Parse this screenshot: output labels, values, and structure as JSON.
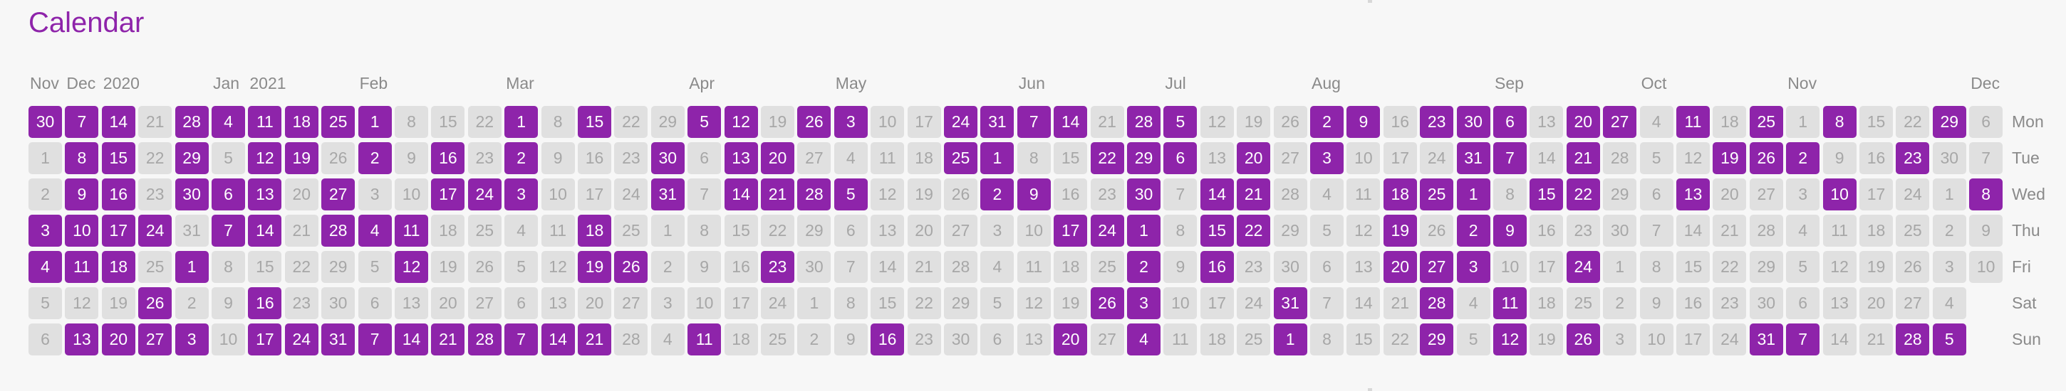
{
  "title": "Calendar",
  "colors": {
    "accent": "#8e24aa",
    "inactive_bg": "#e0e0e0",
    "inactive_text": "#a7a7a7",
    "label": "#8a8a8a"
  },
  "month_labels": [
    {
      "label": "Nov",
      "week": 0
    },
    {
      "label": "Dec",
      "week": 1
    },
    {
      "label": "2020",
      "week": 2
    },
    {
      "label": "Jan",
      "week": 5
    },
    {
      "label": "2021",
      "week": 6
    },
    {
      "label": "Feb",
      "week": 9
    },
    {
      "label": "Mar",
      "week": 13
    },
    {
      "label": "Apr",
      "week": 18
    },
    {
      "label": "May",
      "week": 22
    },
    {
      "label": "Jun",
      "week": 27
    },
    {
      "label": "Jul",
      "week": 31
    },
    {
      "label": "Aug",
      "week": 35
    },
    {
      "label": "Sep",
      "week": 40
    },
    {
      "label": "Oct",
      "week": 44
    },
    {
      "label": "Nov",
      "week": 48
    },
    {
      "label": "Dec",
      "week": 53
    }
  ],
  "weekdays": [
    "Mon",
    "Tue",
    "Wed",
    "Thu",
    "Fri",
    "Sat",
    "Sun"
  ],
  "weeks": [
    {
      "days": [
        30,
        1,
        2,
        3,
        4,
        5,
        6
      ],
      "active": [
        1,
        0,
        0,
        1,
        1,
        0,
        0
      ]
    },
    {
      "days": [
        7,
        8,
        9,
        10,
        11,
        12,
        13
      ],
      "active": [
        1,
        1,
        1,
        1,
        1,
        0,
        1
      ]
    },
    {
      "days": [
        14,
        15,
        16,
        17,
        18,
        19,
        20
      ],
      "active": [
        1,
        1,
        1,
        1,
        1,
        0,
        1
      ]
    },
    {
      "days": [
        21,
        22,
        23,
        24,
        25,
        26,
        27
      ],
      "active": [
        0,
        0,
        0,
        1,
        0,
        1,
        1
      ]
    },
    {
      "days": [
        28,
        29,
        30,
        31,
        1,
        2,
        3
      ],
      "active": [
        1,
        1,
        1,
        0,
        1,
        0,
        1
      ]
    },
    {
      "days": [
        4,
        5,
        6,
        7,
        8,
        9,
        10
      ],
      "active": [
        1,
        0,
        1,
        1,
        0,
        0,
        0
      ]
    },
    {
      "days": [
        11,
        12,
        13,
        14,
        15,
        16,
        17
      ],
      "active": [
        1,
        1,
        1,
        1,
        0,
        1,
        1
      ]
    },
    {
      "days": [
        18,
        19,
        20,
        21,
        22,
        23,
        24
      ],
      "active": [
        1,
        1,
        0,
        0,
        0,
        0,
        1
      ]
    },
    {
      "days": [
        25,
        26,
        27,
        28,
        29,
        30,
        31
      ],
      "active": [
        1,
        0,
        1,
        1,
        0,
        0,
        1
      ]
    },
    {
      "days": [
        1,
        2,
        3,
        4,
        5,
        6,
        7
      ],
      "active": [
        1,
        1,
        0,
        1,
        0,
        0,
        1
      ]
    },
    {
      "days": [
        8,
        9,
        10,
        11,
        12,
        13,
        14
      ],
      "active": [
        0,
        0,
        0,
        1,
        1,
        0,
        1
      ]
    },
    {
      "days": [
        15,
        16,
        17,
        18,
        19,
        20,
        21
      ],
      "active": [
        0,
        1,
        1,
        0,
        0,
        0,
        1
      ]
    },
    {
      "days": [
        22,
        23,
        24,
        25,
        26,
        27,
        28
      ],
      "active": [
        0,
        0,
        1,
        0,
        0,
        0,
        1
      ]
    },
    {
      "days": [
        1,
        2,
        3,
        4,
        5,
        6,
        7
      ],
      "active": [
        1,
        1,
        1,
        0,
        0,
        0,
        1
      ]
    },
    {
      "days": [
        8,
        9,
        10,
        11,
        12,
        13,
        14
      ],
      "active": [
        0,
        0,
        0,
        0,
        0,
        0,
        1
      ]
    },
    {
      "days": [
        15,
        16,
        17,
        18,
        19,
        20,
        21
      ],
      "active": [
        1,
        0,
        0,
        1,
        1,
        0,
        1
      ]
    },
    {
      "days": [
        22,
        23,
        24,
        25,
        26,
        27,
        28
      ],
      "active": [
        0,
        0,
        0,
        0,
        1,
        0,
        0
      ]
    },
    {
      "days": [
        29,
        30,
        31,
        1,
        2,
        3,
        4
      ],
      "active": [
        0,
        1,
        1,
        0,
        0,
        0,
        0
      ]
    },
    {
      "days": [
        5,
        6,
        7,
        8,
        9,
        10,
        11
      ],
      "active": [
        1,
        0,
        0,
        0,
        0,
        0,
        1
      ]
    },
    {
      "days": [
        12,
        13,
        14,
        15,
        16,
        17,
        18
      ],
      "active": [
        1,
        1,
        1,
        0,
        0,
        0,
        0
      ]
    },
    {
      "days": [
        19,
        20,
        21,
        22,
        23,
        24,
        25
      ],
      "active": [
        0,
        1,
        1,
        0,
        1,
        0,
        0
      ]
    },
    {
      "days": [
        26,
        27,
        28,
        29,
        30,
        1,
        2
      ],
      "active": [
        1,
        0,
        1,
        0,
        0,
        0,
        0
      ]
    },
    {
      "days": [
        3,
        4,
        5,
        6,
        7,
        8,
        9
      ],
      "active": [
        1,
        0,
        1,
        0,
        0,
        0,
        0
      ]
    },
    {
      "days": [
        10,
        11,
        12,
        13,
        14,
        15,
        16
      ],
      "active": [
        0,
        0,
        0,
        0,
        0,
        0,
        1
      ]
    },
    {
      "days": [
        17,
        18,
        19,
        20,
        21,
        22,
        23
      ],
      "active": [
        0,
        0,
        0,
        0,
        0,
        0,
        0
      ]
    },
    {
      "days": [
        24,
        25,
        26,
        27,
        28,
        29,
        30
      ],
      "active": [
        1,
        1,
        0,
        0,
        0,
        0,
        0
      ]
    },
    {
      "days": [
        31,
        1,
        2,
        3,
        4,
        5,
        6
      ],
      "active": [
        1,
        1,
        1,
        0,
        0,
        0,
        0
      ]
    },
    {
      "days": [
        7,
        8,
        9,
        10,
        11,
        12,
        13
      ],
      "active": [
        1,
        0,
        1,
        0,
        0,
        0,
        0
      ]
    },
    {
      "days": [
        14,
        15,
        16,
        17,
        18,
        19,
        20
      ],
      "active": [
        1,
        0,
        0,
        1,
        0,
        0,
        1
      ]
    },
    {
      "days": [
        21,
        22,
        23,
        24,
        25,
        26,
        27
      ],
      "active": [
        0,
        1,
        0,
        1,
        0,
        1,
        0
      ]
    },
    {
      "days": [
        28,
        29,
        30,
        1,
        2,
        3,
        4
      ],
      "active": [
        1,
        1,
        1,
        1,
        1,
        1,
        1
      ]
    },
    {
      "days": [
        5,
        6,
        7,
        8,
        9,
        10,
        11
      ],
      "active": [
        1,
        1,
        0,
        0,
        0,
        0,
        0
      ]
    },
    {
      "days": [
        12,
        13,
        14,
        15,
        16,
        17,
        18
      ],
      "active": [
        0,
        0,
        1,
        1,
        1,
        0,
        0
      ]
    },
    {
      "days": [
        19,
        20,
        21,
        22,
        23,
        24,
        25
      ],
      "active": [
        0,
        1,
        1,
        1,
        0,
        0,
        0
      ]
    },
    {
      "days": [
        26,
        27,
        28,
        29,
        30,
        31,
        1
      ],
      "active": [
        0,
        0,
        0,
        0,
        0,
        1,
        1
      ]
    },
    {
      "days": [
        2,
        3,
        4,
        5,
        6,
        7,
        8
      ],
      "active": [
        1,
        1,
        0,
        0,
        0,
        0,
        0
      ]
    },
    {
      "days": [
        9,
        10,
        11,
        12,
        13,
        14,
        15
      ],
      "active": [
        1,
        0,
        0,
        0,
        0,
        0,
        0
      ]
    },
    {
      "days": [
        16,
        17,
        18,
        19,
        20,
        21,
        22
      ],
      "active": [
        0,
        0,
        1,
        1,
        1,
        0,
        0
      ]
    },
    {
      "days": [
        23,
        24,
        25,
        26,
        27,
        28,
        29
      ],
      "active": [
        1,
        0,
        1,
        0,
        1,
        1,
        1
      ]
    },
    {
      "days": [
        30,
        31,
        1,
        2,
        3,
        4,
        5
      ],
      "active": [
        1,
        1,
        1,
        1,
        1,
        0,
        0
      ]
    },
    {
      "days": [
        6,
        7,
        8,
        9,
        10,
        11,
        12
      ],
      "active": [
        1,
        1,
        0,
        1,
        0,
        1,
        1
      ]
    },
    {
      "days": [
        13,
        14,
        15,
        16,
        17,
        18,
        19
      ],
      "active": [
        0,
        0,
        1,
        0,
        0,
        0,
        0
      ]
    },
    {
      "days": [
        20,
        21,
        22,
        23,
        24,
        25,
        26
      ],
      "active": [
        1,
        1,
        1,
        0,
        1,
        0,
        1
      ]
    },
    {
      "days": [
        27,
        28,
        29,
        30,
        1,
        2,
        3
      ],
      "active": [
        1,
        0,
        0,
        0,
        0,
        0,
        0
      ]
    },
    {
      "days": [
        4,
        5,
        6,
        7,
        8,
        9,
        10
      ],
      "active": [
        0,
        0,
        0,
        0,
        0,
        0,
        0
      ]
    },
    {
      "days": [
        11,
        12,
        13,
        14,
        15,
        16,
        17
      ],
      "active": [
        1,
        0,
        1,
        0,
        0,
        0,
        0
      ]
    },
    {
      "days": [
        18,
        19,
        20,
        21,
        22,
        23,
        24
      ],
      "active": [
        0,
        1,
        0,
        0,
        0,
        0,
        0
      ]
    },
    {
      "days": [
        25,
        26,
        27,
        28,
        29,
        30,
        31
      ],
      "active": [
        1,
        1,
        0,
        0,
        0,
        0,
        1
      ]
    },
    {
      "days": [
        1,
        2,
        3,
        4,
        5,
        6,
        7
      ],
      "active": [
        0,
        1,
        0,
        0,
        0,
        0,
        1
      ]
    },
    {
      "days": [
        8,
        9,
        10,
        11,
        12,
        13,
        14
      ],
      "active": [
        1,
        0,
        1,
        0,
        0,
        0,
        0
      ]
    },
    {
      "days": [
        15,
        16,
        17,
        18,
        19,
        20,
        21
      ],
      "active": [
        0,
        0,
        0,
        0,
        0,
        0,
        0
      ]
    },
    {
      "days": [
        22,
        23,
        24,
        25,
        26,
        27,
        28
      ],
      "active": [
        0,
        1,
        0,
        0,
        0,
        0,
        1
      ]
    },
    {
      "days": [
        29,
        30,
        1,
        2,
        3,
        4,
        5
      ],
      "active": [
        1,
        0,
        0,
        0,
        0,
        0,
        1
      ]
    },
    {
      "days": [
        6,
        7,
        8,
        9,
        10
      ],
      "active": [
        0,
        0,
        1,
        0,
        0
      ]
    }
  ]
}
